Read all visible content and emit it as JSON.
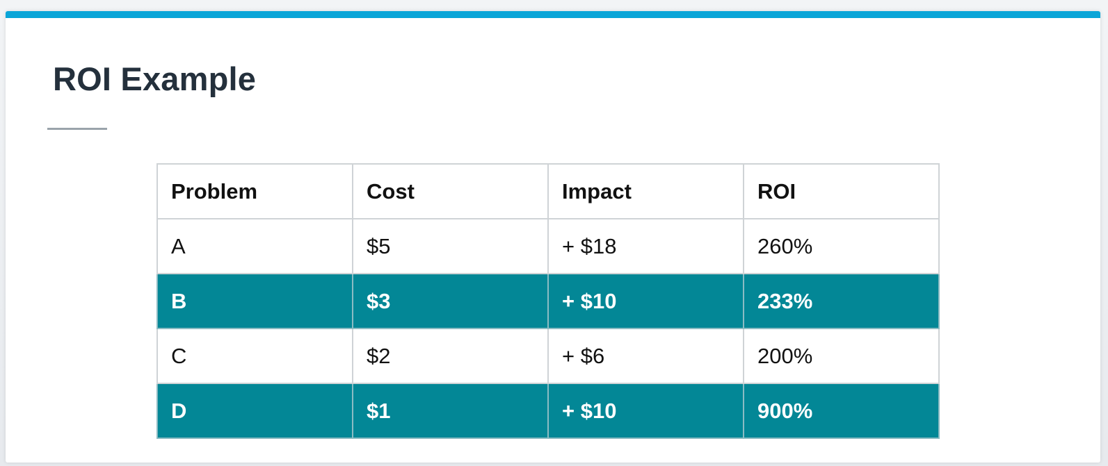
{
  "slide": {
    "title": "ROI Example"
  },
  "table": {
    "headers": [
      "Problem",
      "Cost",
      "Impact",
      "ROI"
    ],
    "rows": [
      {
        "problem": "A",
        "cost": "$5",
        "impact": "+ $18",
        "roi": "260%",
        "highlighted": false
      },
      {
        "problem": "B",
        "cost": "$3",
        "impact": "+ $10",
        "roi": "233%",
        "highlighted": true
      },
      {
        "problem": "C",
        "cost": "$2",
        "impact": "+ $6",
        "roi": "200%",
        "highlighted": false
      },
      {
        "problem": "D",
        "cost": "$1",
        "impact": "+ $10",
        "roi": "900%",
        "highlighted": true
      }
    ]
  },
  "colors": {
    "accent_bar": "#0aa5d8",
    "highlight_row": "#038796",
    "title_text": "#24303c"
  }
}
